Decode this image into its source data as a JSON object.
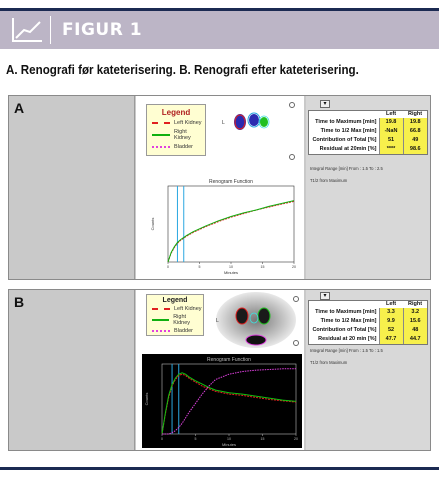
{
  "figure": {
    "title": "FIGUR 1",
    "caption": "A. Renografi før kateterisering.  B. Renografi efter kateterisering."
  },
  "panels": [
    {
      "letter": "A",
      "legend": {
        "title": "Legend",
        "entries": [
          "Left Kidney",
          "Right Kidney",
          "Bladder"
        ]
      },
      "roi_label": "L",
      "results": {
        "col_left": "Left",
        "col_right": "Right",
        "rows": [
          {
            "label": "Time to Maximum [min]",
            "left": "19.8",
            "right": "19.8"
          },
          {
            "label": "Time to 1/2 Max [min]",
            "left": "-NaN",
            "right": "66.8"
          },
          {
            "label": "Contribution of Total [%]",
            "left": "51",
            "right": "49"
          },
          {
            "label": "Residual at 20min [%]",
            "left": "****",
            "right": "98.6"
          }
        ]
      },
      "integral_note": "Integral Range [min] From : 1.5  To : 2.5",
      "t12_note": "T1/2 from Maximum",
      "chart_title": "Renogram Function",
      "ylabel": "Counts",
      "xlabel": "Minutes",
      "x_ticks": [
        "0",
        "5",
        "10",
        "15",
        "20"
      ]
    },
    {
      "letter": "B",
      "legend": {
        "title": "Legend",
        "entries": [
          "Left Kidney",
          "Right Kidney",
          "Bladder"
        ]
      },
      "roi_label": "L",
      "results": {
        "col_left": "Left",
        "col_right": "Right",
        "rows": [
          {
            "label": "Time to Maximum [min]",
            "left": "3.3",
            "right": "3.2"
          },
          {
            "label": "Time to 1/2 Max [min]",
            "left": "9.9",
            "right": "15.6"
          },
          {
            "label": "Contribution of Total [%]",
            "left": "52",
            "right": "48"
          },
          {
            "label": "Residual at 20 min [%]",
            "left": "47.7",
            "right": "44.7"
          }
        ]
      },
      "integral_note": "Integral Range [min] From : 1.5  To : 1.5",
      "t12_note": "T1/2 from Maximum",
      "chart_title": "Renogram Function",
      "ylabel": "Counts",
      "xlabel": "Minutes",
      "x_ticks": [
        "0",
        "5",
        "10",
        "15",
        "20"
      ]
    }
  ],
  "chart_data": [
    {
      "type": "line",
      "title": "Renogram Function",
      "xlabel": "Minutes",
      "ylabel": "Counts",
      "xlim": [
        0,
        20
      ],
      "grid": false,
      "legend": "separate-box",
      "x": [
        0,
        0.5,
        1,
        1.5,
        2,
        3,
        4,
        5,
        6,
        8,
        10,
        12,
        14,
        16,
        18,
        20
      ],
      "series": [
        {
          "name": "Left Kidney",
          "color": "#e02020",
          "values": [
            0,
            0.12,
            0.2,
            0.26,
            0.3,
            0.36,
            0.41,
            0.45,
            0.49,
            0.56,
            0.62,
            0.67,
            0.72,
            0.76,
            0.8,
            0.84
          ]
        },
        {
          "name": "Right Kidney",
          "color": "#10b010",
          "values": [
            0,
            0.13,
            0.21,
            0.27,
            0.31,
            0.37,
            0.42,
            0.46,
            0.5,
            0.57,
            0.63,
            0.68,
            0.72,
            0.77,
            0.81,
            0.85
          ]
        }
      ],
      "markers": [
        {
          "color": "#2aa7e0"
        },
        {
          "color": "#2aa7e0"
        }
      ]
    },
    {
      "type": "line",
      "title": "Renogram Function",
      "xlabel": "Minutes",
      "ylabel": "Counts",
      "xlim": [
        0,
        20
      ],
      "grid": false,
      "legend": "separate-box",
      "x": [
        0,
        0.5,
        1,
        1.5,
        2,
        2.5,
        3,
        3.5,
        4,
        5,
        6,
        7,
        8,
        10,
        12,
        14,
        16,
        18,
        20
      ],
      "series": [
        {
          "name": "Left Kidney",
          "color": "#e02020",
          "values": [
            0,
            0.3,
            0.55,
            0.72,
            0.82,
            0.88,
            0.9,
            0.88,
            0.84,
            0.78,
            0.72,
            0.68,
            0.64,
            0.6,
            0.58,
            0.55,
            0.52,
            0.5,
            0.48
          ]
        },
        {
          "name": "Right Kidney",
          "color": "#10c010",
          "values": [
            0,
            0.32,
            0.58,
            0.74,
            0.84,
            0.9,
            0.92,
            0.9,
            0.86,
            0.8,
            0.75,
            0.7,
            0.66,
            0.62,
            0.6,
            0.57,
            0.54,
            0.51,
            0.49
          ]
        },
        {
          "name": "Bladder",
          "color": "#e040e0",
          "values": [
            0,
            0,
            0,
            0.02,
            0.05,
            0.1,
            0.16,
            0.24,
            0.32,
            0.46,
            0.6,
            0.72,
            0.82,
            0.9,
            0.94,
            0.96,
            0.97,
            0.98,
            0.98
          ]
        }
      ],
      "markers": [
        {
          "color": "#2aa7e0"
        },
        {
          "color": "#2aa7e0"
        }
      ]
    }
  ]
}
